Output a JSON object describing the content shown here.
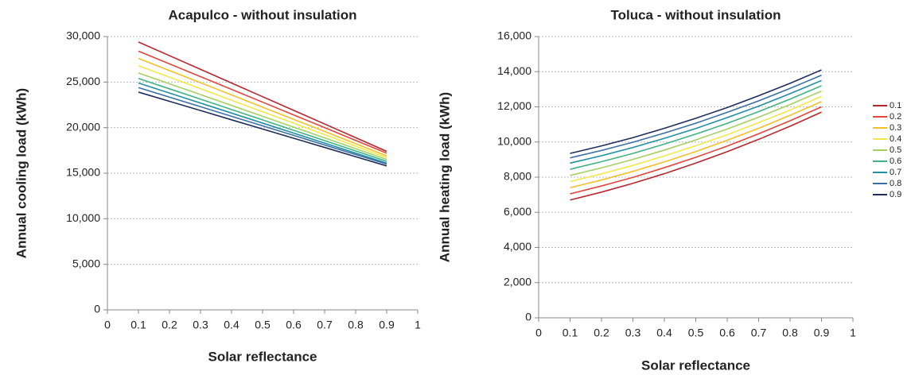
{
  "chart_data": [
    {
      "type": "line",
      "title": "Acapulco - without insulation",
      "x_label": "Solar reflectance",
      "y_label": "Annual cooling load  (kWh)",
      "x": [
        0.1,
        0.2,
        0.3,
        0.4,
        0.5,
        0.6,
        0.7,
        0.8,
        0.9
      ],
      "xlim": [
        0,
        1
      ],
      "xticks": [
        0,
        0.1,
        0.2,
        0.3,
        0.4,
        0.5,
        0.6,
        0.7,
        0.8,
        0.9,
        1
      ],
      "ylim": [
        0,
        30000
      ],
      "yticks": [
        0,
        {
          "value": 5000,
          "label": "5,000"
        },
        {
          "value": 10000,
          "label": "10,000"
        },
        {
          "value": 15000,
          "label": "15,000"
        },
        {
          "value": 20000,
          "label": "20,000"
        },
        {
          "value": 25000,
          "label": "25,000"
        },
        {
          "value": 30000,
          "label": "30,000"
        }
      ],
      "grid": true,
      "series": [
        {
          "color": "#b8262e",
          "values": [
            29400,
            27900,
            26400,
            24900,
            23400,
            21900,
            20400,
            18900,
            17400
          ]
        },
        {
          "color": "#e2463c",
          "values": [
            28400,
            27000,
            25600,
            24200,
            22800,
            21400,
            20000,
            18600,
            17200
          ]
        },
        {
          "color": "#f2c02a",
          "values": [
            27600,
            26260,
            24930,
            23590,
            22250,
            20910,
            19580,
            18240,
            16900
          ]
        },
        {
          "color": "#f2e84e",
          "values": [
            26800,
            25540,
            24280,
            23010,
            21750,
            20490,
            19230,
            17960,
            16700
          ]
        },
        {
          "color": "#a6d064",
          "values": [
            26000,
            24810,
            23630,
            22440,
            21250,
            20060,
            18880,
            17690,
            16500
          ]
        },
        {
          "color": "#3fb383",
          "values": [
            25400,
            24260,
            23130,
            21990,
            20850,
            19710,
            18580,
            17440,
            16300
          ]
        },
        {
          "color": "#1f8ea3",
          "values": [
            24900,
            23800,
            22700,
            21600,
            20500,
            19400,
            18300,
            17200,
            16100
          ]
        },
        {
          "color": "#3a6fa6",
          "values": [
            24400,
            23350,
            22300,
            21250,
            20200,
            19150,
            18100,
            17050,
            16000
          ]
        },
        {
          "color": "#1f2d5c",
          "values": [
            23900,
            22890,
            21880,
            20860,
            19850,
            18840,
            17830,
            16810,
            15800
          ]
        }
      ]
    },
    {
      "type": "line",
      "title": "Toluca - without insulation",
      "x_label": "Solar reflectance",
      "y_label": "Annual heating load  (kWh)",
      "x": [
        0.1,
        0.2,
        0.3,
        0.4,
        0.5,
        0.6,
        0.7,
        0.8,
        0.9
      ],
      "xlim": [
        0,
        1
      ],
      "xticks": [
        0,
        0.1,
        0.2,
        0.3,
        0.4,
        0.5,
        0.6,
        0.7,
        0.8,
        0.9,
        1
      ],
      "ylim": [
        0,
        16000
      ],
      "yticks": [
        0,
        {
          "value": 2000,
          "label": "2,000"
        },
        {
          "value": 4000,
          "label": "4,000"
        },
        {
          "value": 6000,
          "label": "6,000"
        },
        {
          "value": 8000,
          "label": "8,000"
        },
        {
          "value": 10000,
          "label": "10,000"
        },
        {
          "value": 12000,
          "label": "12,000"
        },
        {
          "value": 14000,
          "label": "14,000"
        },
        {
          "value": 16000,
          "label": "16,000"
        }
      ],
      "grid": true,
      "legend": "right",
      "series": [
        {
          "name": "0.1",
          "color": "#b8262e",
          "values": [
            6700,
            7150,
            7650,
            8200,
            8800,
            9450,
            10150,
            10900,
            11700
          ]
        },
        {
          "name": "0.2",
          "color": "#e2463c",
          "values": [
            7050,
            7500,
            7990,
            8540,
            9130,
            9770,
            10470,
            11210,
            12000
          ]
        },
        {
          "name": "0.3",
          "color": "#f2c02a",
          "values": [
            7400,
            7840,
            8330,
            8870,
            9460,
            10100,
            10780,
            11520,
            12300
          ]
        },
        {
          "name": "0.4",
          "color": "#f2e84e",
          "values": [
            7750,
            8190,
            8670,
            9210,
            9790,
            10420,
            11100,
            11820,
            12600
          ]
        },
        {
          "name": "0.5",
          "color": "#a6d064",
          "values": [
            8100,
            8530,
            9010,
            9540,
            10120,
            10740,
            11410,
            12130,
            12900
          ]
        },
        {
          "name": "0.6",
          "color": "#3fb383",
          "values": [
            8450,
            8880,
            9350,
            9880,
            10450,
            11060,
            11730,
            12440,
            13200
          ]
        },
        {
          "name": "0.7",
          "color": "#1f8ea3",
          "values": [
            8800,
            9220,
            9690,
            10210,
            10770,
            11390,
            12040,
            12750,
            13500
          ]
        },
        {
          "name": "0.8",
          "color": "#3a6fa6",
          "values": [
            9100,
            9520,
            9990,
            10510,
            11070,
            11690,
            12340,
            13050,
            13800
          ]
        },
        {
          "name": "0.9",
          "color": "#1f2d5c",
          "values": [
            9350,
            9780,
            10250,
            10780,
            11350,
            11960,
            12630,
            13340,
            14100
          ]
        }
      ]
    }
  ]
}
